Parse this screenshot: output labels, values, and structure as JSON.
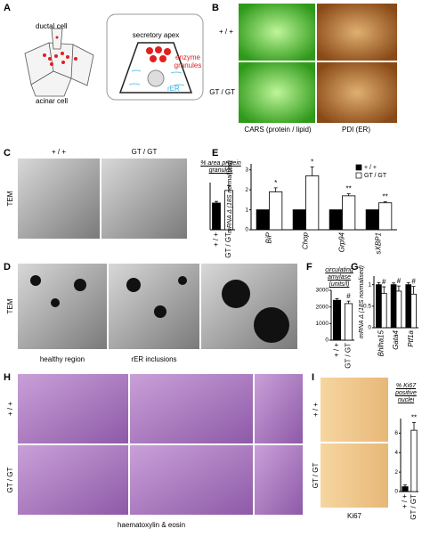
{
  "panels": {
    "A": {
      "label": "A",
      "ductal": "ductal cell",
      "acinar": "acinar cell",
      "apex": "secretory apex",
      "granules": "enzyme granules",
      "rer": "rER"
    },
    "B": {
      "label": "B",
      "wt": "+ / +",
      "gt": "GT / GT",
      "cars": "CARS (protein / lipid)",
      "pdi": "PDI (ER)"
    },
    "C": {
      "label": "C",
      "wt": "+ / +",
      "gt": "GT / GT",
      "tem": "TEM"
    },
    "D": {
      "label": "D",
      "tem": "TEM",
      "healthy": "healthy region",
      "rer": "rER inclusions"
    },
    "E": {
      "label": "E"
    },
    "F": {
      "label": "F"
    },
    "G": {
      "label": "G"
    },
    "H": {
      "label": "H",
      "wt": "+ / +",
      "gt": "GT / GT",
      "stain": "haematoxylin & eosin"
    },
    "I": {
      "label": "I",
      "wt": "+ / +",
      "gt": "GT / GT",
      "ki67": "Ki67"
    }
  },
  "chart_data": [
    {
      "type": "bar",
      "title": "% area protein granules",
      "categories": [
        "+ / +",
        "GT / GT"
      ],
      "values": [
        17,
        25
      ],
      "errors": [
        1,
        3
      ],
      "colors": [
        "#000000",
        "#ffffff"
      ],
      "ylim": [
        0,
        30
      ]
    },
    {
      "type": "bar",
      "ylabel": "mRNA Δ (18S normalised)",
      "categories": [
        "BiP",
        "Chop",
        "Grp94",
        "sXBP1"
      ],
      "series": [
        {
          "name": "+ / +",
          "color": "#000000",
          "values": [
            1,
            1,
            1,
            1
          ]
        },
        {
          "name": "GT / GT",
          "color": "#ffffff",
          "values": [
            1.9,
            2.7,
            1.7,
            1.35
          ],
          "errors": [
            0.2,
            0.45,
            0.1,
            0.05
          ],
          "annotations": [
            "*",
            "*",
            "**",
            "**"
          ]
        }
      ],
      "ylim": [
        0,
        3.3
      ],
      "yticks": [
        0,
        1,
        2,
        3
      ]
    },
    {
      "type": "bar",
      "title": "circulating amylase (units/l)",
      "categories": [
        "+ / +",
        "GT / GT"
      ],
      "values": [
        2400,
        2200
      ],
      "errors": [
        100,
        150
      ],
      "annotations": [
        null,
        "#"
      ],
      "colors": [
        "#000000",
        "#ffffff"
      ],
      "ylim": [
        0,
        3000
      ],
      "yticks": [
        0,
        1000,
        2000,
        3000
      ]
    },
    {
      "type": "bar",
      "ylabel": "mRNA Δ (18S normalised)",
      "categories": [
        "Bhlha15",
        "Gata4",
        "Ptf1a"
      ],
      "series": [
        {
          "color": "#000000",
          "values": [
            1,
            1,
            1
          ],
          "errors": [
            0.05,
            0.04,
            0.05
          ]
        },
        {
          "color": "#ffffff",
          "values": [
            0.8,
            0.85,
            0.78
          ],
          "errors": [
            0.15,
            0.12,
            0.18
          ],
          "annotations": [
            "#",
            "#",
            "#"
          ]
        }
      ],
      "ylim": [
        0,
        1.2
      ],
      "yticks": [
        0,
        0.5,
        1
      ]
    },
    {
      "type": "bar",
      "title": "% Ki67 positive nuclei",
      "categories": [
        "+ / +",
        "GT / GT"
      ],
      "values": [
        0.5,
        6.3
      ],
      "errors": [
        0.2,
        0.8
      ],
      "annotations": [
        null,
        "**"
      ],
      "colors": [
        "#000000",
        "#ffffff"
      ],
      "ylim": [
        0,
        7.5
      ],
      "yticks": [
        0,
        2,
        4,
        6
      ]
    }
  ]
}
